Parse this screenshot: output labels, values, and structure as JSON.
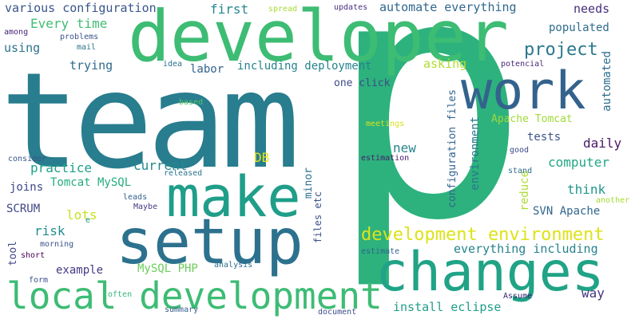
{
  "words": [
    {
      "text": "p",
      "color": "#2db27d"
    },
    {
      "text": "team",
      "color": "#287d8e"
    },
    {
      "text": "developer",
      "color": "#3dbc74"
    },
    {
      "text": "work",
      "color": "#33638d"
    },
    {
      "text": "make",
      "color": "#1f9e89"
    },
    {
      "text": "setup",
      "color": "#2c718e"
    },
    {
      "text": "changes",
      "color": "#20a386"
    },
    {
      "text": "local development",
      "color": "#3dbc74"
    },
    {
      "text": "development environment",
      "color": "#dde318"
    },
    {
      "text": "project",
      "color": "#2a788e"
    },
    {
      "text": "various configuration",
      "color": "#39558c"
    },
    {
      "text": "automate everything",
      "color": "#31678e"
    },
    {
      "text": "Every time",
      "color": "#40bd72"
    },
    {
      "text": "first",
      "color": "#24878e"
    },
    {
      "text": "needs",
      "color": "#462f7c"
    },
    {
      "text": "populated",
      "color": "#2f6c8e"
    },
    {
      "text": "using",
      "color": "#2c738e"
    },
    {
      "text": "trying",
      "color": "#2f6b8e"
    },
    {
      "text": "labor",
      "color": "#33628d"
    },
    {
      "text": "including deployment",
      "color": "#26828e"
    },
    {
      "text": "asking",
      "color": "#b0dd2f"
    },
    {
      "text": "one click",
      "color": "#3e4a89"
    },
    {
      "text": "automated",
      "color": "#2e6d8e"
    },
    {
      "text": "configuration files",
      "color": "#32648e"
    },
    {
      "text": "environment",
      "color": "#2a768e"
    },
    {
      "text": "Apache Tomcat",
      "color": "#a0da39"
    },
    {
      "text": "tests",
      "color": "#3b528b"
    },
    {
      "text": "daily",
      "color": "#481769"
    },
    {
      "text": "new",
      "color": "#25858e"
    },
    {
      "text": "DB",
      "color": "#e5e419"
    },
    {
      "text": "practice",
      "color": "#1fa188"
    },
    {
      "text": "current",
      "color": "#23898e"
    },
    {
      "text": "computer",
      "color": "#22a785"
    },
    {
      "text": "joins",
      "color": "#3e4989"
    },
    {
      "text": "Tomcat MySQL",
      "color": "#26ad81"
    },
    {
      "text": "think",
      "color": "#1f998a"
    },
    {
      "text": "minor",
      "color": "#2d718e"
    },
    {
      "text": "reduce",
      "color": "#addc30"
    },
    {
      "text": "SVN Apache",
      "color": "#31678e"
    },
    {
      "text": "SCRUM",
      "color": "#3f4788"
    },
    {
      "text": "lots",
      "color": "#c8e020"
    },
    {
      "text": "risk",
      "color": "#218e8d"
    },
    {
      "text": "files etc",
      "color": "#3b528b"
    },
    {
      "text": "tool",
      "color": "#3f4788"
    },
    {
      "text": "everything including",
      "color": "#26828e"
    },
    {
      "text": "example",
      "color": "#443983"
    },
    {
      "text": "MySQL PHP",
      "color": "#6ccd5a"
    },
    {
      "text": "way",
      "color": "#453781"
    },
    {
      "text": "install eclipse",
      "color": "#1f9e89"
    },
    {
      "text": "spread",
      "color": "#a8db34"
    },
    {
      "text": "updates",
      "color": "#46307e"
    },
    {
      "text": "among",
      "color": "#482475"
    },
    {
      "text": "problems",
      "color": "#3a538b"
    },
    {
      "text": "mail",
      "color": "#2b758e"
    },
    {
      "text": "idea",
      "color": "#2d708e"
    },
    {
      "text": "potencial",
      "color": "#482878"
    },
    {
      "text": "based",
      "color": "#52c569"
    },
    {
      "text": "meetings",
      "color": "#d8e219"
    },
    {
      "text": "good",
      "color": "#3e4989"
    },
    {
      "text": "estimation",
      "color": "#481a6c"
    },
    {
      "text": "stand",
      "color": "#2e6e8e"
    },
    {
      "text": "another",
      "color": "#a5db36"
    },
    {
      "text": "consider",
      "color": "#39568c"
    },
    {
      "text": "released",
      "color": "#2c728e"
    },
    {
      "text": "leads",
      "color": "#34618d"
    },
    {
      "text": "Maybe",
      "color": "#453882"
    },
    {
      "text": "e",
      "color": "#20928c"
    },
    {
      "text": "morning",
      "color": "#3a538b"
    },
    {
      "text": "short",
      "color": "#440154"
    },
    {
      "text": "analysis",
      "color": "#2e6f8e"
    },
    {
      "text": "estimate",
      "color": "#33638d"
    },
    {
      "text": "form",
      "color": "#3b518b"
    },
    {
      "text": "often",
      "color": "#35b779"
    },
    {
      "text": "summary",
      "color": "#355e8d"
    },
    {
      "text": "document",
      "color": "#3e4c8a"
    },
    {
      "text": "Assume",
      "color": "#2d1e6e"
    }
  ]
}
